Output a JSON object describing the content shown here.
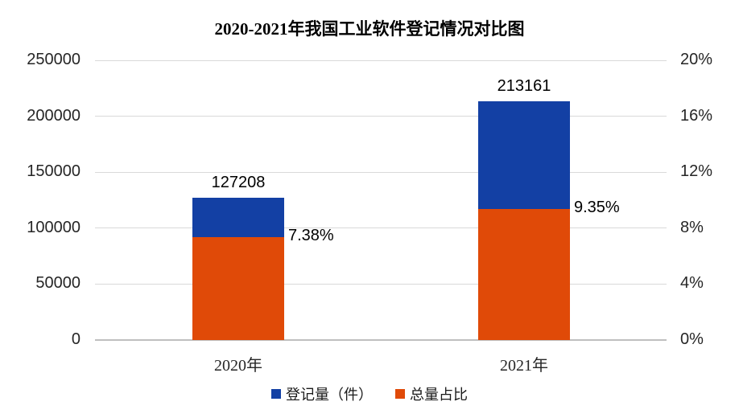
{
  "chart_data": {
    "type": "bar",
    "title": "2020-2021年我国工业软件登记情况对比图",
    "categories": [
      "2020年",
      "2021年"
    ],
    "series": [
      {
        "name": "登记量（件）",
        "axis": "left",
        "color": "#1340A4",
        "values": [
          127208,
          213161
        ],
        "labels": [
          "127208",
          "213161"
        ]
      },
      {
        "name": "总量占比",
        "axis": "right",
        "color": "#E04A08",
        "values": [
          7.38,
          9.35
        ],
        "labels": [
          "7.38%",
          "9.35%"
        ]
      }
    ],
    "left_axis": {
      "min": 0,
      "max": 250000,
      "step": 50000,
      "ticks": [
        "0",
        "50000",
        "100000",
        "150000",
        "200000",
        "250000"
      ]
    },
    "right_axis": {
      "min": 0,
      "max": 20,
      "step": 4,
      "ticks": [
        "0%",
        "4%",
        "8%",
        "12%",
        "16%",
        "20%"
      ]
    },
    "grid": true,
    "legend_position": "bottom",
    "colors": {
      "grid": "#D9D9D9",
      "baseline": "#BFBFBF",
      "tick_text": "#262626",
      "label_text": "#000000"
    }
  }
}
